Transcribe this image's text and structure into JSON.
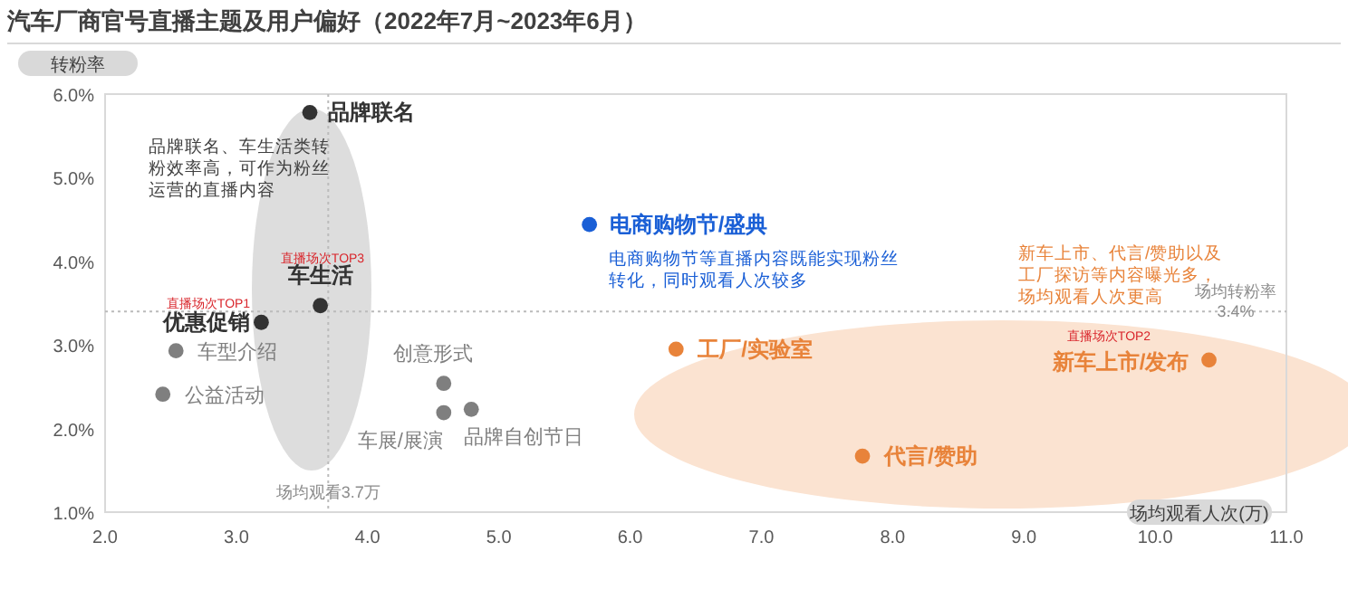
{
  "chart_data": {
    "type": "scatter",
    "title": "汽车厂商官号直播主题及用户偏好（2022年7月~2023年6月）",
    "xlabel": "场均观看人次(万)",
    "ylabel": "转粉率",
    "xlim": [
      2,
      11
    ],
    "ylim": [
      1,
      6
    ],
    "xticks": [
      {
        "value": 2,
        "label": "2.0"
      },
      {
        "value": 3,
        "label": "3.0"
      },
      {
        "value": 4,
        "label": "4.0"
      },
      {
        "value": 5,
        "label": "5.0"
      },
      {
        "value": 6,
        "label": "6.0"
      },
      {
        "value": 7,
        "label": "7.0"
      },
      {
        "value": 8,
        "label": "8.0"
      },
      {
        "value": 9,
        "label": "9.0"
      },
      {
        "value": 10,
        "label": "10.0"
      },
      {
        "value": 11,
        "label": "11.0"
      }
    ],
    "yticks": [
      {
        "value": 1,
        "label": "1.0%"
      },
      {
        "value": 2,
        "label": "2.0%"
      },
      {
        "value": 3,
        "label": "3.0%"
      },
      {
        "value": 4,
        "label": "4.0%"
      },
      {
        "value": 5,
        "label": "5.0%"
      },
      {
        "value": 6,
        "label": "6.0%"
      }
    ],
    "grid": false,
    "legend": false,
    "marker": "circle",
    "series": [
      {
        "name": "品牌联名",
        "color": "#333333",
        "x": [
          3.56
        ],
        "values": [
          5.78
        ]
      },
      {
        "name": "车生活",
        "color": "#333333",
        "x": [
          3.64
        ],
        "values": [
          3.47
        ]
      },
      {
        "name": "优惠促销",
        "color": "#333333",
        "x": [
          3.19
        ],
        "values": [
          3.27
        ]
      },
      {
        "name": "车型介绍",
        "color": "#7f7f7f",
        "x": [
          2.54
        ],
        "values": [
          2.93
        ]
      },
      {
        "name": "公益活动",
        "color": "#7f7f7f",
        "x": [
          2.44
        ],
        "values": [
          2.41
        ]
      },
      {
        "name": "创意形式",
        "color": "#7f7f7f",
        "x": [
          4.58
        ],
        "values": [
          2.54
        ]
      },
      {
        "name": "车展/展演",
        "color": "#7f7f7f",
        "x": [
          4.58
        ],
        "values": [
          2.19
        ]
      },
      {
        "name": "品牌自创节日",
        "color": "#7f7f7f",
        "x": [
          4.79
        ],
        "values": [
          2.23
        ]
      },
      {
        "name": "电商购物节/盛典",
        "color": "#1a5fd6",
        "x": [
          5.69
        ],
        "values": [
          4.44
        ]
      },
      {
        "name": "工厂/实验室",
        "color": "#e8833a",
        "x": [
          6.35
        ],
        "values": [
          2.95
        ]
      },
      {
        "name": "代言/赞助",
        "color": "#e8833a",
        "x": [
          7.77
        ],
        "values": [
          1.67
        ]
      },
      {
        "name": "新车上市/发布",
        "color": "#e8833a",
        "x": [
          10.41
        ],
        "values": [
          2.82
        ]
      }
    ],
    "ref_lines": [
      {
        "axis": "x",
        "value": 3.7,
        "label": "场均观看3.7万",
        "color": "#bbbbbb",
        "line_style": "dotted"
      },
      {
        "axis": "y",
        "value": 3.4,
        "label": "场均转粉率\n3.4%",
        "color": "#bbbbbb",
        "line_style": "dotted"
      }
    ],
    "annotations": [
      "品牌联名、车生活类转粉效率高，可作为粉丝运营的直播内容",
      "电商购物节等直播内容既能实现粉丝转化，同时观看人次较多",
      "新车上市、代言/赞助以及工厂探访等内容曝光多，场均观看人次更高",
      "直播场次TOP1",
      "直播场次TOP3",
      "直播场次TOP2"
    ]
  }
}
